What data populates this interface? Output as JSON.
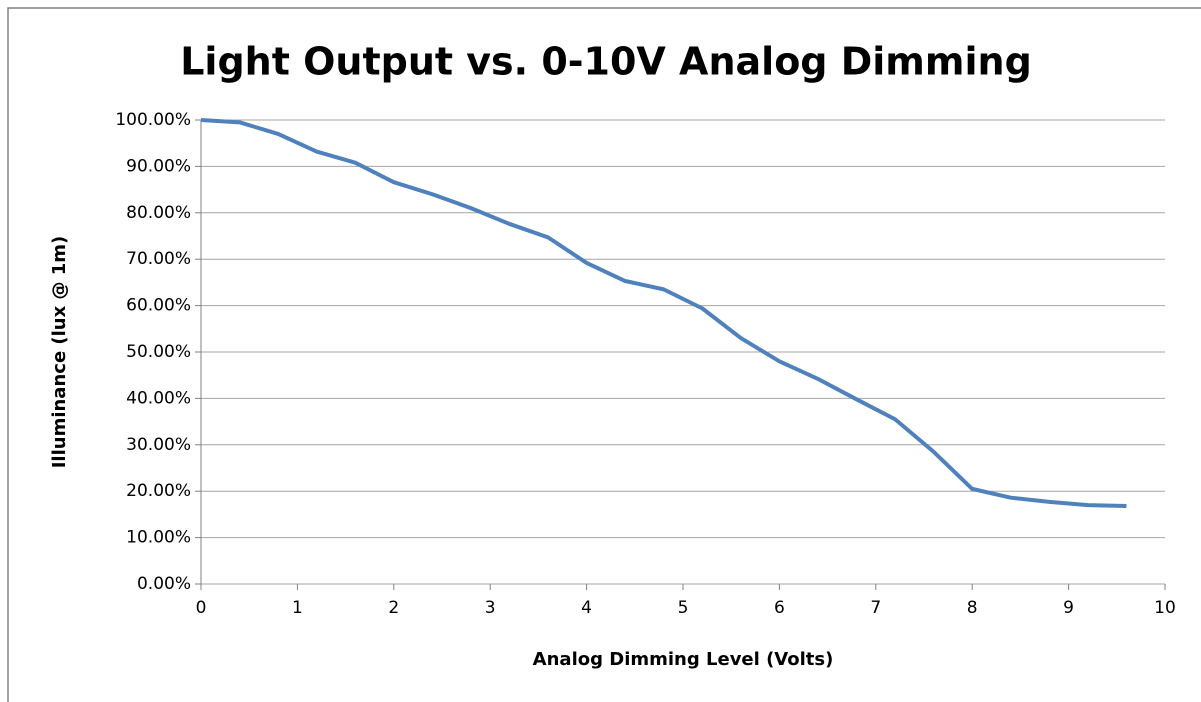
{
  "chart_data": {
    "type": "line",
    "title": "Light Output vs.  0-10V Analog Dimming",
    "x_label": "Analog Dimming Level (Volts)",
    "y_label": "Illuminance (lux @ 1m)",
    "x": [
      0,
      0.4,
      0.8,
      1.2,
      1.6,
      2.0,
      2.4,
      2.8,
      3.2,
      3.6,
      4.0,
      4.4,
      4.8,
      5.2,
      5.6,
      6.0,
      6.4,
      6.8,
      7.2,
      7.6,
      8.0,
      8.4,
      8.8,
      9.2,
      9.6
    ],
    "series": [
      {
        "color": "#4f81bd",
        "values": [
          100,
          99.5,
          97,
          93.2,
          90.8,
          86.6,
          84,
          81,
          77.6,
          74.7,
          69.2,
          65.3,
          63.5,
          59.4,
          53,
          48,
          44.2,
          39.8,
          35.5,
          28.5,
          20.5,
          18.6,
          17.7,
          17,
          16.8
        ]
      }
    ],
    "xlim": [
      0,
      10
    ],
    "xticks": [
      0,
      1,
      2,
      3,
      4,
      5,
      6,
      7,
      8,
      9,
      10
    ],
    "ylim": [
      0,
      100
    ],
    "yticks": [
      {
        "value": 0,
        "label": "0.00%"
      },
      {
        "value": 10,
        "label": "10.00%"
      },
      {
        "value": 20,
        "label": "20.00%"
      },
      {
        "value": 30,
        "label": "30.00%"
      },
      {
        "value": 40,
        "label": "40.00%"
      },
      {
        "value": 50,
        "label": "50.00%"
      },
      {
        "value": 60,
        "label": "60.00%"
      },
      {
        "value": 70,
        "label": "70.00%"
      },
      {
        "value": 80,
        "label": "80.00%"
      },
      {
        "value": 90,
        "label": "90.00%"
      },
      {
        "value": 100,
        "label": "100.00%"
      }
    ],
    "grid": true
  }
}
